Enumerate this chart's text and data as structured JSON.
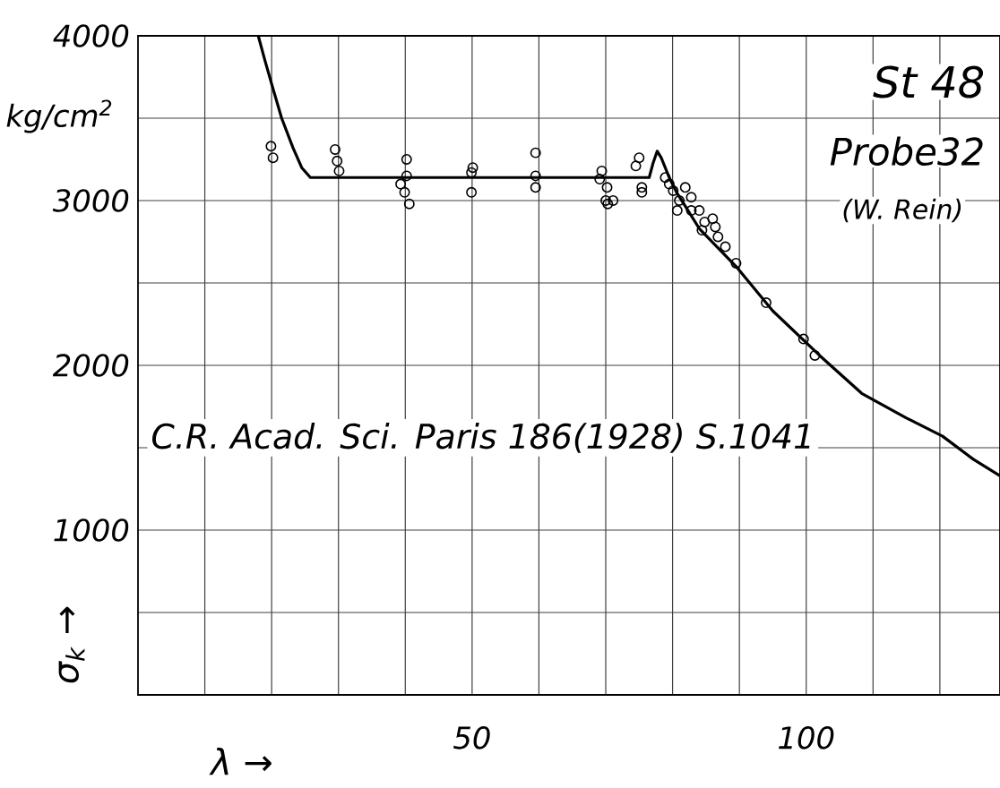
{
  "chart_data": {
    "type": "scatter",
    "xlabel": "λ →",
    "ylabel": "σ$_{k}$ →",
    "annotations": [
      "kg/cm$^{2}$",
      "St 48",
      "Probe32",
      "(W. Rein)",
      "C.R. Acad. Sci. Paris 186(1928) S.1041"
    ],
    "xlim": [
      0,
      129
    ],
    "ylim": [
      0,
      4000
    ],
    "xticks": [
      {
        "value": 10,
        "label": null
      },
      {
        "value": 20,
        "label": null
      },
      {
        "value": 30,
        "label": null
      },
      {
        "value": 40,
        "label": null
      },
      50,
      {
        "value": 60,
        "label": null
      },
      {
        "value": 70,
        "label": null
      },
      {
        "value": 80,
        "label": null
      },
      {
        "value": 90,
        "label": null
      },
      100,
      {
        "value": 110,
        "label": null
      },
      {
        "value": 120,
        "label": null
      }
    ],
    "yticks": [
      {
        "value": 500,
        "label": null
      },
      1000,
      {
        "value": 1500,
        "label": null
      },
      2000,
      {
        "value": 2500,
        "label": null
      },
      3000,
      {
        "value": 3500,
        "label": null
      },
      4000
    ],
    "grid": true,
    "series": [
      {
        "marker": "circle",
        "color": "#000000",
        "x": [
          19.9,
          20.2,
          29.5,
          29.8,
          30.1,
          40.2,
          40.2,
          39.3,
          39.9,
          40.6,
          50.1,
          49.9,
          49.9,
          59.5,
          59.5,
          59.5,
          69.4,
          69.1,
          70.2,
          70.0,
          71.1,
          70.3,
          75.0,
          74.5,
          75.4,
          75.4,
          78.9,
          79.5,
          80.1,
          81.0,
          80.7,
          81.9,
          82.8,
          82.8,
          84.0,
          84.8,
          84.4,
          86.0,
          86.4,
          86.8,
          87.9,
          89.5,
          94.0,
          99.6,
          101.3
        ],
        "values": [
          3330,
          3260,
          3310,
          3240,
          3180,
          3250,
          3150,
          3100,
          3050,
          2980,
          3200,
          3170,
          3050,
          3290,
          3150,
          3080,
          3180,
          3130,
          3080,
          3000,
          3000,
          2980,
          3260,
          3210,
          3080,
          3050,
          3140,
          3100,
          3060,
          3000,
          2940,
          3080,
          3020,
          2940,
          2940,
          2870,
          2820,
          2890,
          2840,
          2780,
          2720,
          2620,
          2380,
          2160,
          2060
        ]
      },
      {
        "type": "line",
        "marker": "none",
        "color": "#000000",
        "x": [
          18,
          19,
          20.2,
          21.5,
          23.2,
          24.5,
          25.8,
          27,
          76.5,
          77.1,
          77.7,
          78.3,
          79.5,
          80.6,
          84,
          89.5,
          95,
          102,
          108.3,
          115,
          120.4,
          125,
          129
        ],
        "values": [
          4000,
          3850,
          3680,
          3500,
          3320,
          3200,
          3140,
          3140,
          3140,
          3230,
          3300,
          3260,
          3140,
          3050,
          2830,
          2600,
          2330,
          2060,
          1830,
          1680,
          1570,
          1430,
          1330
        ]
      }
    ]
  }
}
